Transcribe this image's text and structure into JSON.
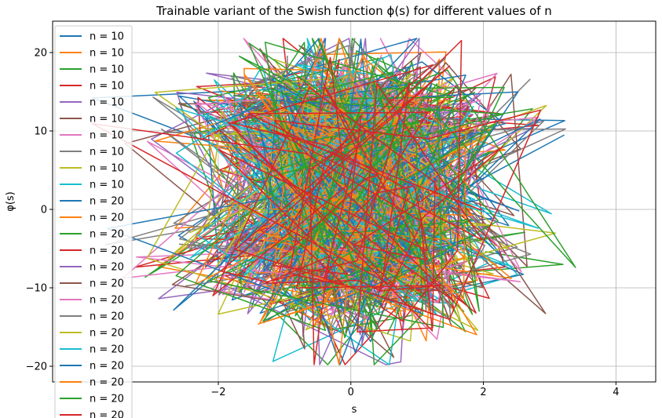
{
  "chart_data": {
    "type": "line",
    "title": "Trainable variant of the Swish function ϕ(s) for different values of n",
    "xlabel": "s",
    "ylabel": "φ(s)",
    "xlim": [
      -4.5,
      4.6
    ],
    "ylim": [
      -22,
      24
    ],
    "xticks": [
      -2,
      0,
      2,
      4
    ],
    "xtick_labels": [
      "−2",
      "0",
      "2",
      "4"
    ],
    "yticks": [
      -20,
      -10,
      0,
      10,
      20
    ],
    "ytick_labels": [
      "−20",
      "−10",
      "0",
      "10",
      "20"
    ],
    "grid": true,
    "legend_position": "upper-left",
    "colors": [
      "#1f77b4",
      "#ff7f0e",
      "#2ca02c",
      "#d62728",
      "#9467bd",
      "#8c564b",
      "#e377c2",
      "#7f7f7f",
      "#bcbd22",
      "#17becf"
    ],
    "series": [
      {
        "name": "n = 10",
        "n": 10
      },
      {
        "name": "n = 10",
        "n": 10
      },
      {
        "name": "n = 10",
        "n": 10
      },
      {
        "name": "n = 10",
        "n": 10
      },
      {
        "name": "n = 10",
        "n": 10
      },
      {
        "name": "n = 10",
        "n": 10
      },
      {
        "name": "n = 10",
        "n": 10
      },
      {
        "name": "n = 10",
        "n": 10
      },
      {
        "name": "n = 10",
        "n": 10
      },
      {
        "name": "n = 10",
        "n": 10
      },
      {
        "name": "n = 20",
        "n": 20
      },
      {
        "name": "n = 20",
        "n": 20
      },
      {
        "name": "n = 20",
        "n": 20
      },
      {
        "name": "n = 20",
        "n": 20
      },
      {
        "name": "n = 20",
        "n": 20
      },
      {
        "name": "n = 20",
        "n": 20
      },
      {
        "name": "n = 20",
        "n": 20
      },
      {
        "name": "n = 20",
        "n": 20
      },
      {
        "name": "n = 20",
        "n": 20
      },
      {
        "name": "n = 20",
        "n": 20
      },
      {
        "name": "n = 20",
        "n": 20
      },
      {
        "name": "n = 20",
        "n": 20
      },
      {
        "name": "n = 20",
        "n": 20
      },
      {
        "name": "n = 20",
        "n": 20
      }
    ]
  }
}
